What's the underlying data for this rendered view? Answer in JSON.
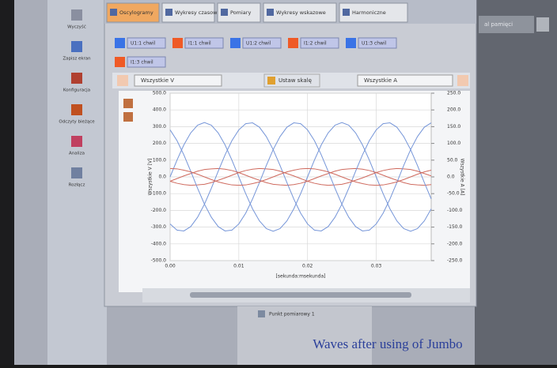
{
  "sidebar": {
    "items": [
      "Wyczyść",
      "Zapisz ekran",
      "Konfiguracja",
      "Odczyty bieżące",
      "Analiza",
      "Rozłącz"
    ]
  },
  "tabs": [
    "Oscylogramy",
    "Wykresy czasowe",
    "Pomiary",
    "Wykresy wskazowe",
    "Harmoniczne"
  ],
  "right_panel": {
    "label": "al pamięci"
  },
  "controls": {
    "left_select": "Wszystkie V",
    "button": "Ustaw skalę",
    "right_select": "Wszystkie A"
  },
  "chart_data": {
    "type": "line",
    "x_label": "[sekunda:msekunda]",
    "y_label": "Wszystkie V [V]",
    "y2_label": "Wszystkie A [A]",
    "x": [
      0,
      0.001,
      0.002,
      0.003,
      0.004,
      0.005,
      0.006,
      0.007,
      0.008,
      0.009,
      0.01,
      0.011,
      0.012,
      0.013,
      0.014,
      0.015,
      0.016,
      0.017,
      0.018,
      0.019,
      0.02,
      0.021,
      0.022,
      0.023,
      0.024,
      0.025,
      0.026,
      0.027,
      0.028,
      0.029,
      0.03,
      0.031,
      0.032,
      0.033,
      0.034,
      0.035,
      0.036,
      0.037,
      0.038
    ],
    "series": [
      {
        "name": "U1:1 chwil",
        "color": "#3a73e6",
        "line_color": "#7595d8",
        "values": [
          0,
          100,
          191,
          263,
          309,
          325,
          309,
          263,
          191,
          100,
          0,
          -100,
          -191,
          -263,
          -309,
          -325,
          -309,
          -263,
          -191,
          -100,
          0,
          100,
          191,
          263,
          309,
          325,
          309,
          263,
          191,
          100,
          0,
          -100,
          -191,
          -263,
          -309,
          -325,
          -309,
          -263,
          -191
        ]
      },
      {
        "name": "I1:1 chwil",
        "color": "#ef5a26",
        "line_color": "#cf6a5e",
        "axis": "y2",
        "values": [
          -13,
          -5,
          3,
          10,
          17,
          22,
          24,
          25,
          23,
          19,
          13,
          5,
          -3,
          -10,
          -17,
          -22,
          -24,
          -25,
          -23,
          -19,
          -13,
          -5,
          3,
          10,
          17,
          22,
          24,
          25,
          23,
          19,
          13,
          5,
          -3,
          -10,
          -17,
          -22,
          -24,
          -25,
          -23
        ]
      },
      {
        "name": "U1:2 chwil",
        "color": "#3a73e6",
        "line_color": "#7595d8",
        "values": [
          -281,
          -318,
          -323,
          -297,
          -241,
          -163,
          -68,
          34,
          132,
          217,
          281,
          318,
          323,
          297,
          241,
          163,
          68,
          -34,
          -132,
          -217,
          -281,
          -318,
          -323,
          -297,
          -241,
          -163,
          -68,
          34,
          132,
          217,
          281,
          318,
          323,
          297,
          241,
          163,
          68,
          -34,
          -132
        ]
      },
      {
        "name": "I1:2 chwil",
        "color": "#ef5a26",
        "line_color": "#cf6a5e",
        "axis": "y2",
        "values": [
          -13,
          -19,
          -23,
          -25,
          -24,
          -22,
          -17,
          -10,
          -3,
          5,
          13,
          19,
          23,
          25,
          24,
          22,
          17,
          10,
          3,
          -5,
          -13,
          -19,
          -23,
          -25,
          -24,
          -22,
          -17,
          -10,
          -3,
          5,
          13,
          19,
          23,
          25,
          24,
          22,
          17,
          10,
          3
        ]
      },
      {
        "name": "U1:3 chwil",
        "color": "#3a73e6",
        "line_color": "#7595d8",
        "values": [
          281,
          217,
          132,
          34,
          -68,
          -163,
          -241,
          -297,
          -323,
          -318,
          -281,
          -217,
          -132,
          -34,
          68,
          163,
          241,
          297,
          323,
          318,
          281,
          217,
          132,
          34,
          -68,
          -163,
          -241,
          -297,
          -323,
          -318,
          -281,
          -217,
          -132,
          -34,
          68,
          163,
          241,
          297,
          323
        ]
      },
      {
        "name": "I1:3 chwil",
        "color": "#ef5a26",
        "line_color": "#cf6a5e",
        "axis": "y2",
        "values": [
          25,
          24,
          20,
          15,
          8,
          0,
          -8,
          -15,
          -20,
          -24,
          -25,
          -24,
          -20,
          -15,
          -8,
          0,
          8,
          15,
          20,
          24,
          25,
          24,
          20,
          15,
          8,
          0,
          -8,
          -15,
          -20,
          -24,
          -25,
          -24,
          -20,
          -15,
          -8,
          0,
          8,
          15,
          20
        ]
      }
    ],
    "xlim": [
      0,
      0.038
    ],
    "xticks": [
      {
        "value": 0,
        "label": "0.00"
      },
      0.01,
      0.02,
      0.03
    ],
    "ylim": [
      -500,
      500
    ],
    "yticks": [
      {
        "value": 500,
        "label": "500.0"
      },
      {
        "value": 400,
        "label": "400.0"
      },
      {
        "value": 300,
        "label": "300.0"
      },
      {
        "value": 200,
        "label": "200.0"
      },
      {
        "value": 100,
        "label": "100.0"
      },
      {
        "value": 0,
        "label": "0.0"
      },
      {
        "value": -100,
        "label": "-100.0"
      },
      {
        "value": -200,
        "label": "-200.0"
      },
      {
        "value": -300,
        "label": "-300.0"
      },
      {
        "value": -400,
        "label": "-400.0"
      },
      {
        "value": -500,
        "label": "-500.0"
      }
    ],
    "y2lim": [
      -250,
      250
    ],
    "y2ticks": [
      {
        "value": 250,
        "label": "250.0"
      },
      {
        "value": 200,
        "label": "200.0"
      },
      {
        "value": 150,
        "label": "150.0"
      },
      {
        "value": 100,
        "label": "100.0"
      },
      {
        "value": 50,
        "label": "50.0"
      },
      {
        "value": 0,
        "label": "0.0"
      },
      {
        "value": -50,
        "label": "-50.0"
      },
      {
        "value": -100,
        "label": "-100.0"
      },
      {
        "value": -150,
        "label": "-150.0"
      },
      {
        "value": -200,
        "label": "-200.0"
      },
      {
        "value": -250,
        "label": "-250.0"
      }
    ],
    "grid": true
  },
  "footer": {
    "tree_item": "Punkt pomiarowy 1"
  },
  "caption": "Waves after using of Jumbo"
}
